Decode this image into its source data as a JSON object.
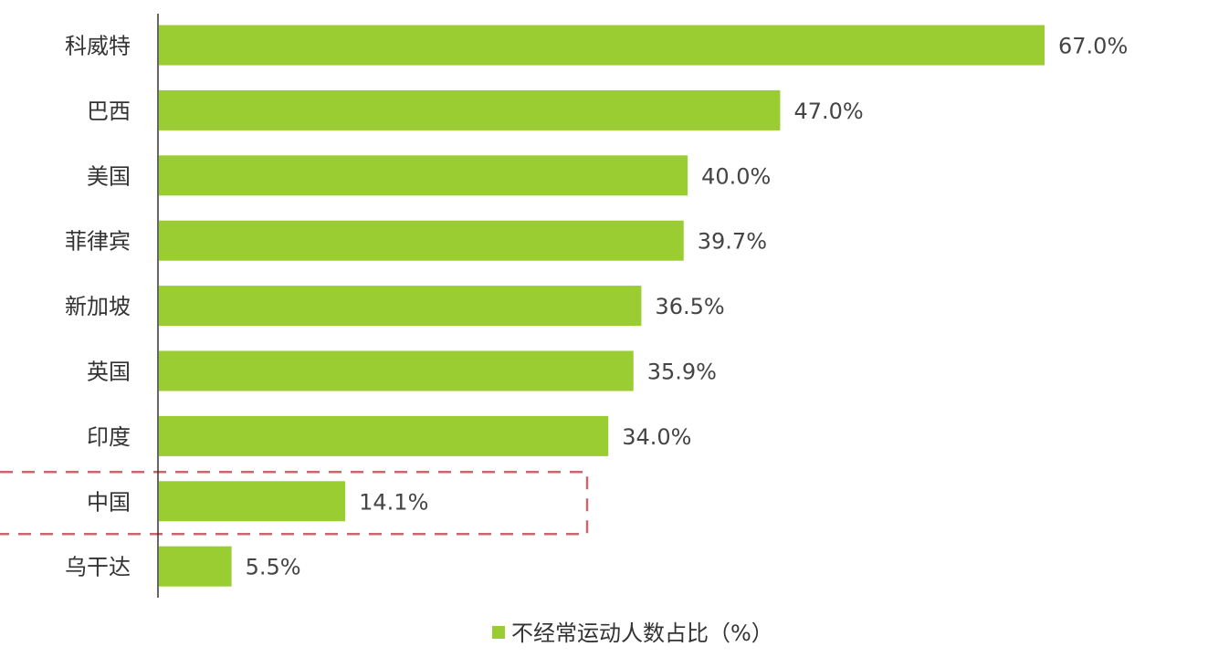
{
  "chart_data": {
    "type": "bar",
    "orientation": "horizontal",
    "categories": [
      "科威特",
      "巴西",
      "美国",
      "菲律宾",
      "新加坡",
      "英国",
      "印度",
      "中国",
      "乌干达"
    ],
    "values": [
      67.0,
      47.0,
      40.0,
      39.7,
      36.5,
      35.9,
      34.0,
      14.1,
      5.5
    ],
    "value_labels": [
      "67.0%",
      "47.0%",
      "40.0%",
      "39.7%",
      "36.5%",
      "35.9%",
      "34.0%",
      "14.1%",
      "5.5%"
    ],
    "series": [
      {
        "name": "不经常运动人数占比（%）",
        "values": [
          67.0,
          47.0,
          40.0,
          39.7,
          36.5,
          35.9,
          34.0,
          14.1,
          5.5
        ]
      }
    ],
    "xlim": [
      0,
      67
    ],
    "grid": false,
    "legend": "bottom-center",
    "highlight_category": "中国",
    "colors": {
      "bar": "#9ACD32",
      "axis": "#333333",
      "text": "#333333",
      "label": "#444444",
      "highlight_box": "#C2575C"
    }
  }
}
